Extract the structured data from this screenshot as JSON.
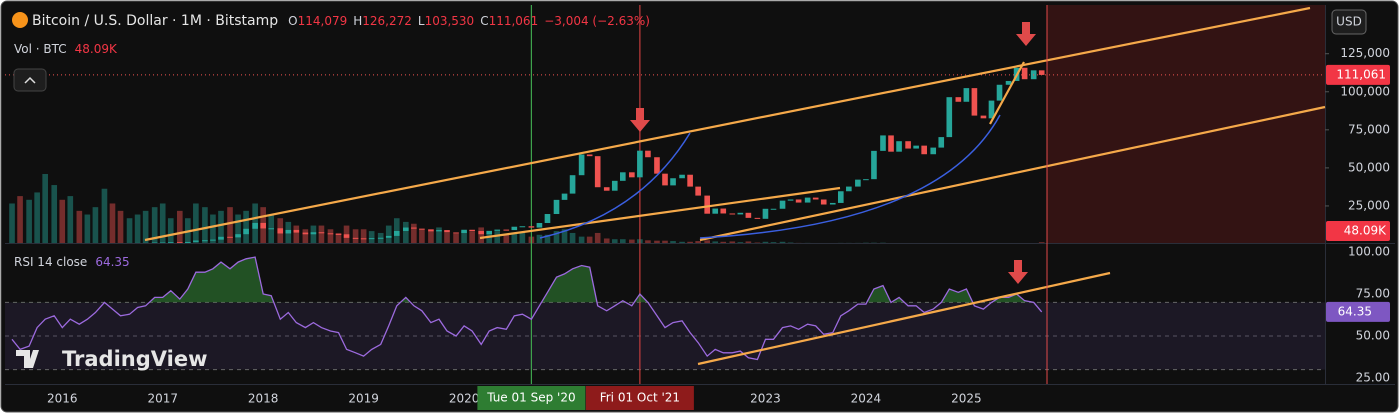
{
  "header": {
    "symbol": "Bitcoin / U.S. Dollar · 1M · Bitstamp",
    "ohlc": [
      {
        "label": "O",
        "value": "114,079"
      },
      {
        "label": "H",
        "value": "126,272"
      },
      {
        "label": "L",
        "value": "103,530"
      },
      {
        "label": "C",
        "value": "111,061"
      }
    ],
    "change": "−3,004 (−2.63%)",
    "volume_label": "Vol · BTC",
    "volume_value": "48.09K",
    "currency": "USD",
    "watermark": "TradingView"
  },
  "chart_data": {
    "type": "candlestick",
    "x": [
      2015.5,
      2015.58,
      2015.67,
      2015.75,
      2015.83,
      2015.92,
      2016,
      2016.08,
      2016.17,
      2016.25,
      2016.33,
      2016.42,
      2016.5,
      2016.58,
      2016.67,
      2016.75,
      2016.83,
      2016.92,
      2017,
      2017.08,
      2017.17,
      2017.25,
      2017.33,
      2017.42,
      2017.5,
      2017.58,
      2017.67,
      2017.75,
      2017.83,
      2017.92,
      2018,
      2018.08,
      2018.17,
      2018.25,
      2018.33,
      2018.42,
      2018.5,
      2018.58,
      2018.67,
      2018.75,
      2018.83,
      2018.92,
      2019,
      2019.08,
      2019.17,
      2019.25,
      2019.33,
      2019.42,
      2019.5,
      2019.58,
      2019.67,
      2019.75,
      2019.83,
      2019.92,
      2020,
      2020.08,
      2020.17,
      2020.25,
      2020.33,
      2020.42,
      2020.5,
      2020.58,
      2020.67,
      2020.75,
      2020.83,
      2020.92,
      2021,
      2021.08,
      2021.17,
      2021.25,
      2021.33,
      2021.42,
      2021.5,
      2021.58,
      2021.67,
      2021.75,
      2021.83,
      2021.92,
      2022,
      2022.08,
      2022.17,
      2022.25,
      2022.33,
      2022.42,
      2022.5,
      2022.58,
      2022.67,
      2022.75,
      2022.83,
      2022.92,
      2023,
      2023.08,
      2023.17,
      2023.25,
      2023.33,
      2023.42,
      2023.5,
      2023.58,
      2023.67,
      2023.75,
      2023.83,
      2023.92,
      2024,
      2024.08,
      2024.17,
      2024.25,
      2024.33,
      2024.42,
      2024.5,
      2024.58,
      2024.67,
      2024.75,
      2024.83,
      2024.92,
      2025,
      2025.08,
      2025.17,
      2025.25,
      2025.33,
      2025.42,
      2025.5,
      2025.58,
      2025.67,
      2025.75
    ],
    "open": [
      263,
      284,
      230,
      236,
      314,
      378,
      430,
      368,
      437,
      416,
      448,
      531,
      671,
      624,
      573,
      608,
      700,
      742,
      963,
      970,
      1190,
      1080,
      1350,
      2300,
      2480,
      2870,
      4730,
      4340,
      6450,
      10000,
      13860,
      10220,
      10330,
      6920,
      9240,
      7500,
      6390,
      7730,
      7030,
      6630,
      6370,
      4040,
      3740,
      3460,
      3850,
      4100,
      5320,
      8560,
      10820,
      10090,
      9630,
      8300,
      9150,
      7570,
      7200,
      9350,
      8540,
      6440,
      8630,
      9450,
      9140,
      11350,
      11650,
      10780,
      13800,
      19700,
      28990,
      33100,
      45200,
      58800,
      57700,
      37300,
      35000,
      41500,
      47100,
      43800,
      61300,
      57000,
      46200,
      38500,
      43200,
      45500,
      37700,
      31800,
      19900,
      23300,
      20050,
      19430,
      20500,
      17170,
      16550,
      23130,
      23150,
      28480,
      29250,
      27220,
      30480,
      29230,
      25940,
      26970,
      34650,
      37720,
      42280,
      42580,
      61180,
      71330,
      60640,
      67530,
      62700,
      64620,
      58970,
      63330,
      70220,
      96450,
      93430,
      102400,
      84350,
      82550,
      94200,
      104600,
      107100,
      115760,
      108250,
      114079
    ],
    "close": [
      284,
      230,
      236,
      314,
      378,
      430,
      368,
      437,
      416,
      448,
      531,
      671,
      624,
      573,
      608,
      700,
      742,
      963,
      970,
      1190,
      1080,
      1350,
      2300,
      2480,
      2870,
      4730,
      4340,
      6450,
      10000,
      13860,
      10220,
      10330,
      6920,
      9240,
      7500,
      6390,
      7730,
      7030,
      6630,
      6370,
      4040,
      3740,
      3460,
      3850,
      4100,
      5320,
      8560,
      10820,
      10090,
      9630,
      8300,
      9150,
      7570,
      7200,
      9350,
      8540,
      6440,
      8630,
      9450,
      9140,
      11350,
      11650,
      10780,
      13800,
      19700,
      28990,
      33100,
      45200,
      58800,
      57700,
      37300,
      35000,
      41500,
      47100,
      43800,
      61300,
      57000,
      46200,
      38500,
      43200,
      45500,
      37700,
      31800,
      19900,
      23300,
      20050,
      19430,
      20500,
      17170,
      16550,
      23130,
      23150,
      28480,
      29250,
      27220,
      30480,
      29230,
      25940,
      26970,
      34650,
      37720,
      42280,
      42580,
      61180,
      71330,
      60640,
      67530,
      62700,
      64620,
      58970,
      63330,
      70220,
      96450,
      93430,
      102400,
      84350,
      82550,
      94200,
      104600,
      107100,
      115760,
      108250,
      114079,
      111061
    ],
    "volume": [
      1100,
      1300,
      1200,
      1400,
      1900,
      1600,
      1200,
      1300,
      900,
      800,
      1000,
      1500,
      1100,
      900,
      700,
      800,
      900,
      1000,
      1100,
      700,
      900,
      700,
      1100,
      1000,
      800,
      900,
      1000,
      800,
      900,
      1100,
      1000,
      800,
      700,
      600,
      500,
      400,
      500,
      500,
      400,
      300,
      500,
      400,
      400,
      350,
      300,
      500,
      700,
      600,
      550,
      400,
      350,
      450,
      300,
      280,
      350,
      350,
      450,
      300,
      350,
      250,
      300,
      300,
      200,
      250,
      250,
      350,
      400,
      300,
      200,
      200,
      300,
      150,
      130,
      130,
      120,
      130,
      100,
      90,
      90,
      80,
      60,
      60,
      80,
      100,
      70,
      60,
      70,
      50,
      70,
      40,
      60,
      50,
      60,
      40,
      30,
      30,
      25,
      25,
      20,
      30,
      30,
      30,
      35,
      35,
      35,
      25,
      20,
      15,
      20,
      20,
      15,
      20,
      25,
      20,
      15,
      15,
      15,
      12,
      12,
      10,
      10,
      10,
      10,
      48.09
    ],
    "up_color": "#26a69a",
    "down_color": "#ef5350",
    "xlim": [
      2015.43,
      2028.57
    ],
    "xticks": [
      2016,
      2017,
      2018,
      2019,
      2020,
      2021,
      2022,
      2023,
      2024,
      2025
    ],
    "ylim": [
      0,
      157000
    ],
    "yticks": [
      {
        "value": 25000,
        "label": "25,000"
      },
      {
        "value": 50000,
        "label": "50,000"
      },
      {
        "value": 75000,
        "label": "75,000"
      },
      {
        "value": 100000,
        "label": "100,000"
      },
      {
        "value": 125000,
        "label": "125,000"
      }
    ],
    "crosshairs": [
      {
        "x": 2020.67,
        "label": "Tue 01 Sep '20",
        "color": "#2e7d32"
      },
      {
        "x": 2021.75,
        "label": "Fri 01 Oct '21",
        "color": "#8e1b1b"
      }
    ],
    "rsi": {
      "name": "RSI 14 close",
      "last": "64.35",
      "color": "#9c6ade",
      "values": [
        48,
        42,
        44,
        55,
        60,
        62,
        55,
        60,
        57,
        60,
        64,
        70,
        66,
        62,
        63,
        67,
        68,
        73,
        73,
        77,
        72,
        78,
        88,
        88,
        90,
        94,
        90,
        94,
        96,
        97,
        75,
        74,
        60,
        64,
        58,
        55,
        58,
        55,
        53,
        52,
        42,
        40,
        38,
        42,
        45,
        56,
        68,
        73,
        68,
        65,
        58,
        60,
        53,
        50,
        56,
        53,
        45,
        53,
        55,
        54,
        62,
        63,
        60,
        68,
        76,
        85,
        87,
        90,
        92,
        91,
        68,
        65,
        68,
        71,
        68,
        75,
        70,
        62,
        55,
        58,
        59,
        52,
        46,
        38,
        42,
        40,
        40,
        41,
        37,
        36,
        48,
        48,
        55,
        56,
        54,
        57,
        56,
        51,
        52,
        62,
        65,
        69,
        69,
        78,
        80,
        70,
        73,
        68,
        68,
        64,
        66,
        70,
        78,
        76,
        78,
        68,
        66,
        70,
        73,
        73,
        75,
        71,
        70,
        64.35
      ],
      "ylim": [
        21.4,
        104.8
      ],
      "yticks": [
        {
          "value": 25,
          "label": "25.00"
        },
        {
          "value": 50,
          "label": "50.00"
        },
        {
          "value": 75,
          "label": "75.00"
        },
        {
          "value": 100,
          "label": "100.00"
        }
      ],
      "overbought": 70,
      "oversold": 30
    }
  }
}
